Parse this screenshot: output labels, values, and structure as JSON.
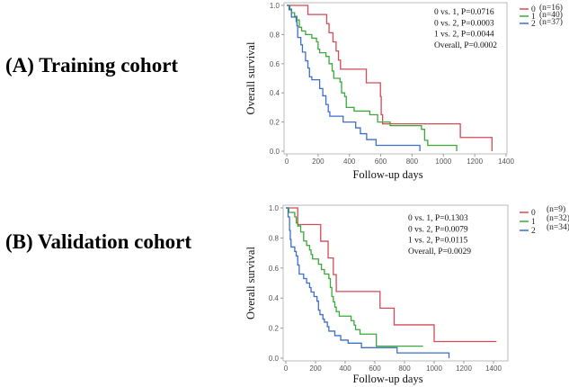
{
  "panels": [
    {
      "title": "(A) Training cohort",
      "chart_data": {
        "type": "line",
        "subtype": "kaplan-meier step",
        "xlabel": "Follow-up days",
        "ylabel": "Overall survival",
        "xlim": [
          0,
          1400
        ],
        "ylim": [
          0,
          1.0
        ],
        "xticks": [
          "0",
          "200",
          "400",
          "600",
          "800",
          "1000",
          "1200",
          "1400"
        ],
        "yticks": [
          "0.0",
          "0.2",
          "0.4",
          "0.6",
          "0.8",
          "1.0"
        ],
        "grid": false,
        "legend_position": "top-right outside",
        "annotations": [
          "0 vs. 1, P=0.0716",
          "0 vs. 2, P=0.0003",
          "1 vs. 2, P=0.0044",
          "Overall, P=0.0002"
        ],
        "series": [
          {
            "name": "0",
            "n_label": "(n=16)",
            "color": "#d24b57",
            "points": [
              [
                0,
                1
              ],
              [
                135,
                0.9375
              ],
              [
                255,
                0.875
              ],
              [
                270,
                0.8125
              ],
              [
                295,
                0.75
              ],
              [
                315,
                0.6875
              ],
              [
                330,
                0.625
              ],
              [
                343,
                0.5625
              ],
              [
                508,
                0.469
              ],
              [
                598,
                0.375
              ],
              [
                603,
                0.25
              ],
              [
                612,
                0.1875
              ],
              [
                1108,
                0.094
              ],
              [
                1310,
                0
              ]
            ]
          },
          {
            "name": "1",
            "n_label": "(n=40)",
            "color": "#3aa83a",
            "points": [
              [
                0,
                1
              ],
              [
                20,
                0.975
              ],
              [
                30,
                0.95
              ],
              [
                50,
                0.925
              ],
              [
                65,
                0.9
              ],
              [
                80,
                0.85
              ],
              [
                95,
                0.825
              ],
              [
                120,
                0.8
              ],
              [
                160,
                0.775
              ],
              [
                190,
                0.75
              ],
              [
                200,
                0.7
              ],
              [
                210,
                0.675
              ],
              [
                250,
                0.65
              ],
              [
                270,
                0.6
              ],
              [
                290,
                0.55
              ],
              [
                300,
                0.5
              ],
              [
                340,
                0.475
              ],
              [
                350,
                0.4
              ],
              [
                370,
                0.375
              ],
              [
                380,
                0.3
              ],
              [
                430,
                0.275
              ],
              [
                530,
                0.25
              ],
              [
                580,
                0.2
              ],
              [
                660,
                0.175
              ],
              [
                860,
                0.15
              ],
              [
                880,
                0.075
              ],
              [
                900,
                0.04
              ],
              [
                1085,
                0
              ]
            ]
          },
          {
            "name": "2",
            "n_label": "(n=37)",
            "color": "#3b6fc9",
            "points": [
              [
                0,
                1
              ],
              [
                15,
                0.97
              ],
              [
                30,
                0.92
              ],
              [
                60,
                0.89
              ],
              [
                65,
                0.86
              ],
              [
                70,
                0.78
              ],
              [
                90,
                0.73
              ],
              [
                100,
                0.68
              ],
              [
                120,
                0.62
              ],
              [
                135,
                0.57
              ],
              [
                145,
                0.51
              ],
              [
                160,
                0.49
              ],
              [
                210,
                0.43
              ],
              [
                230,
                0.38
              ],
              [
                250,
                0.32
              ],
              [
                265,
                0.27
              ],
              [
                275,
                0.24
              ],
              [
                360,
                0.2
              ],
              [
                440,
                0.16
              ],
              [
                470,
                0.12
              ],
              [
                510,
                0.08
              ],
              [
                570,
                0.04
              ],
              [
                850,
                0
              ]
            ]
          }
        ]
      }
    },
    {
      "title": "(B) Validation cohort",
      "chart_data": {
        "type": "line",
        "subtype": "kaplan-meier step",
        "xlabel": "Follow-up days",
        "ylabel": "Overall survival",
        "xlim": [
          0,
          1400
        ],
        "ylim": [
          0,
          1.0
        ],
        "xticks": [
          "0",
          "200",
          "400",
          "600",
          "800",
          "1000",
          "1200",
          "1400"
        ],
        "yticks": [
          "0.0",
          "0.2",
          "0.4",
          "0.6",
          "0.8",
          "1.0"
        ],
        "grid": false,
        "legend_position": "top-right outside",
        "annotations": [
          "0 vs. 1, P=0.1303",
          "0 vs. 2, P=0.0079",
          "1 vs. 2, P=0.0115",
          "Overall, P=0.0029"
        ],
        "series": [
          {
            "name": "0",
            "n_label": "(n=9)",
            "color": "#d24b57",
            "points": [
              [
                0,
                1
              ],
              [
                80,
                0.889
              ],
              [
                235,
                0.778
              ],
              [
                285,
                0.667
              ],
              [
                320,
                0.556
              ],
              [
                340,
                0.444
              ],
              [
                635,
                0.333
              ],
              [
                730,
                0.222
              ],
              [
                1000,
                0.111
              ],
              [
                1420,
                0.111
              ]
            ]
          },
          {
            "name": "1",
            "n_label": "(n=32)",
            "color": "#3aa83a",
            "points": [
              [
                0,
                1
              ],
              [
                20,
                0.97
              ],
              [
                60,
                0.94
              ],
              [
                70,
                0.9
              ],
              [
                80,
                0.88
              ],
              [
                100,
                0.84
              ],
              [
                120,
                0.78
              ],
              [
                140,
                0.75
              ],
              [
                160,
                0.72
              ],
              [
                170,
                0.69
              ],
              [
                180,
                0.66
              ],
              [
                220,
                0.625
              ],
              [
                240,
                0.59
              ],
              [
                260,
                0.56
              ],
              [
                290,
                0.53
              ],
              [
                300,
                0.47
              ],
              [
                310,
                0.41
              ],
              [
                320,
                0.375
              ],
              [
                330,
                0.34
              ],
              [
                340,
                0.31
              ],
              [
                360,
                0.28
              ],
              [
                440,
                0.25
              ],
              [
                460,
                0.22
              ],
              [
                470,
                0.19
              ],
              [
                500,
                0.16
              ],
              [
                610,
                0.08
              ],
              [
                925,
                0.08
              ]
            ]
          },
          {
            "name": "2",
            "n_label": "(n=34)",
            "color": "#3b6fc9",
            "points": [
              [
                0,
                1
              ],
              [
                15,
                0.94
              ],
              [
                25,
                0.85
              ],
              [
                30,
                0.79
              ],
              [
                35,
                0.74
              ],
              [
                60,
                0.71
              ],
              [
                70,
                0.68
              ],
              [
                80,
                0.62
              ],
              [
                90,
                0.56
              ],
              [
                120,
                0.53
              ],
              [
                140,
                0.5
              ],
              [
                160,
                0.47
              ],
              [
                170,
                0.44
              ],
              [
                190,
                0.41
              ],
              [
                210,
                0.38
              ],
              [
                220,
                0.32
              ],
              [
                230,
                0.29
              ],
              [
                250,
                0.26
              ],
              [
                260,
                0.24
              ],
              [
                280,
                0.21
              ],
              [
                290,
                0.18
              ],
              [
                330,
                0.15
              ],
              [
                370,
                0.12
              ],
              [
                420,
                0.1
              ],
              [
                510,
                0.07
              ],
              [
                750,
                0.035
              ],
              [
                1100,
                0
              ]
            ]
          }
        ]
      }
    }
  ]
}
